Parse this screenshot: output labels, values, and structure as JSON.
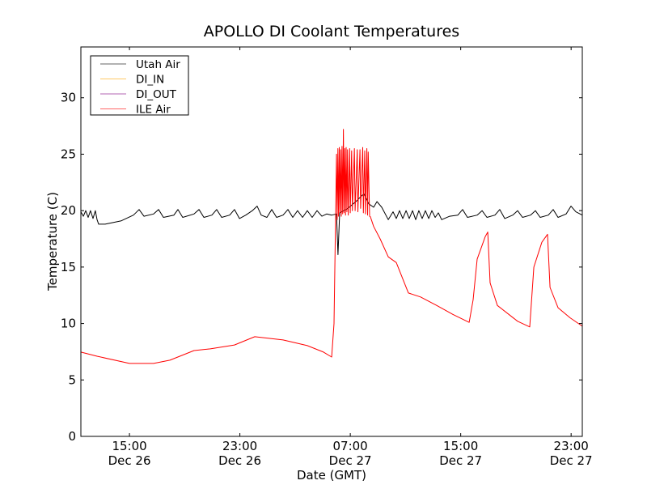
{
  "chart_data": {
    "type": "line",
    "title": "APOLLO DI Coolant Temperatures",
    "xlabel": "Date (GMT)",
    "ylabel": "Temperature (C)",
    "x_units": "hours since Dec 26 00:00 GMT",
    "xlim": [
      11.48,
      47.81
    ],
    "ylim": [
      0,
      34.5
    ],
    "grid": false,
    "legend_position": "top-left",
    "yticks": [
      0,
      5,
      10,
      15,
      20,
      25,
      30
    ],
    "xticks": [
      {
        "value": 15,
        "time": "15:00",
        "date": "Dec 26"
      },
      {
        "value": 23,
        "time": "23:00",
        "date": "Dec 26"
      },
      {
        "value": 31,
        "time": "07:00",
        "date": "Dec 27"
      },
      {
        "value": 39,
        "time": "15:00",
        "date": "Dec 27"
      },
      {
        "value": 47,
        "time": "23:00",
        "date": "Dec 27"
      }
    ],
    "series": [
      {
        "name": "Utah Air",
        "color": "#000000",
        "x": [
          11.48,
          11.66,
          11.83,
          12.01,
          12.18,
          12.36,
          12.53,
          12.65,
          12.77,
          13.24,
          14.41,
          15.29,
          15.7,
          16.05,
          16.75,
          17.11,
          17.46,
          18.22,
          18.51,
          18.86,
          19.68,
          20.04,
          20.39,
          20.97,
          21.32,
          21.68,
          22.26,
          22.61,
          22.97,
          23.43,
          23.9,
          24.25,
          24.55,
          24.96,
          25.31,
          25.66,
          26.13,
          26.48,
          26.83,
          27.18,
          27.54,
          27.89,
          28.24,
          28.59,
          28.94,
          29.29,
          29.65,
          30.0,
          30.11,
          30.23,
          30.82,
          31.4,
          31.99,
          32.34,
          32.69,
          32.93,
          33.28,
          33.75,
          34.1,
          34.33,
          34.57,
          34.8,
          35.04,
          35.27,
          35.51,
          35.74,
          35.97,
          36.21,
          36.44,
          36.68,
          36.91,
          37.15,
          37.38,
          37.62,
          38.2,
          38.79,
          39.14,
          39.49,
          40.19,
          40.55,
          40.9,
          41.48,
          41.83,
          42.19,
          42.77,
          43.12,
          43.48,
          44.06,
          44.41,
          44.76,
          45.35,
          45.7,
          46.05,
          46.64,
          46.99,
          47.34,
          47.81
        ],
        "y": [
          19.9,
          19.5,
          20.0,
          19.4,
          20.0,
          19.3,
          20.0,
          19.2,
          18.8,
          18.8,
          19.1,
          19.6,
          20.1,
          19.5,
          19.7,
          20.1,
          19.4,
          19.6,
          20.1,
          19.4,
          19.7,
          20.1,
          19.4,
          19.6,
          20.1,
          19.4,
          19.6,
          20.1,
          19.3,
          19.6,
          20.0,
          20.4,
          19.6,
          19.4,
          20.1,
          19.4,
          19.6,
          20.1,
          19.4,
          20.0,
          19.4,
          20.0,
          19.4,
          20.0,
          19.5,
          19.7,
          19.6,
          19.7,
          16.1,
          19.8,
          20.2,
          20.8,
          21.5,
          20.6,
          20.3,
          20.8,
          20.3,
          19.2,
          19.9,
          19.3,
          20.0,
          19.3,
          20.0,
          19.3,
          20.0,
          19.2,
          20.0,
          19.3,
          20.0,
          19.3,
          20.0,
          19.4,
          19.8,
          19.2,
          19.5,
          19.6,
          20.1,
          19.4,
          19.6,
          20.0,
          19.4,
          19.6,
          20.1,
          19.3,
          19.6,
          20.0,
          19.4,
          19.6,
          20.0,
          19.4,
          19.6,
          20.1,
          19.4,
          19.7,
          20.4,
          19.9,
          19.6
        ]
      },
      {
        "name": "DI_IN",
        "color": "#ffa500",
        "x": [],
        "y": []
      },
      {
        "name": "DI_OUT",
        "color": "#800080",
        "x": [],
        "y": []
      },
      {
        "name": "ILE Air",
        "color": "#ff0000",
        "x": [
          11.48,
          12.65,
          15.0,
          16.75,
          17.93,
          19.68,
          20.86,
          22.61,
          24.08,
          26.13,
          27.89,
          29.06,
          29.65,
          29.82,
          30.0,
          30.05,
          30.1,
          30.15,
          30.2,
          30.25,
          30.3,
          30.35,
          30.4,
          30.45,
          30.5,
          30.55,
          30.6,
          30.65,
          30.7,
          30.75,
          30.8,
          30.85,
          30.95,
          31.0,
          31.1,
          31.15,
          31.3,
          31.35,
          31.5,
          31.55,
          31.7,
          31.75,
          31.9,
          31.95,
          32.05,
          32.1,
          32.2,
          32.25,
          32.3,
          32.4,
          32.46,
          32.69,
          33.16,
          33.75,
          34.33,
          34.92,
          35.21,
          36.09,
          37.26,
          38.44,
          39.61,
          39.9,
          40.19,
          40.78,
          40.96,
          41.13,
          41.66,
          43.12,
          44.0,
          44.3,
          44.88,
          45.29,
          45.47,
          46.05,
          46.93,
          47.81
        ],
        "y": [
          7.47,
          7.1,
          6.46,
          6.46,
          6.75,
          7.6,
          7.75,
          8.1,
          8.83,
          8.54,
          8.04,
          7.47,
          7.03,
          10.0,
          25.0,
          19.2,
          25.5,
          19.5,
          25.6,
          19.8,
          25.4,
          19.5,
          25.7,
          19.7,
          27.2,
          19.8,
          25.5,
          19.6,
          25.6,
          19.9,
          25.4,
          19.6,
          25.5,
          19.8,
          25.3,
          20.0,
          25.5,
          20.0,
          25.4,
          19.9,
          25.4,
          20.2,
          25.6,
          19.8,
          25.3,
          19.7,
          25.5,
          19.6,
          25.2,
          19.5,
          19.45,
          18.6,
          17.5,
          15.9,
          15.4,
          13.6,
          12.7,
          12.35,
          11.6,
          10.8,
          10.1,
          12.1,
          15.7,
          17.7,
          18.1,
          13.6,
          11.6,
          10.2,
          9.7,
          15.0,
          17.2,
          17.9,
          13.2,
          11.4,
          10.5,
          9.76
        ]
      }
    ]
  }
}
